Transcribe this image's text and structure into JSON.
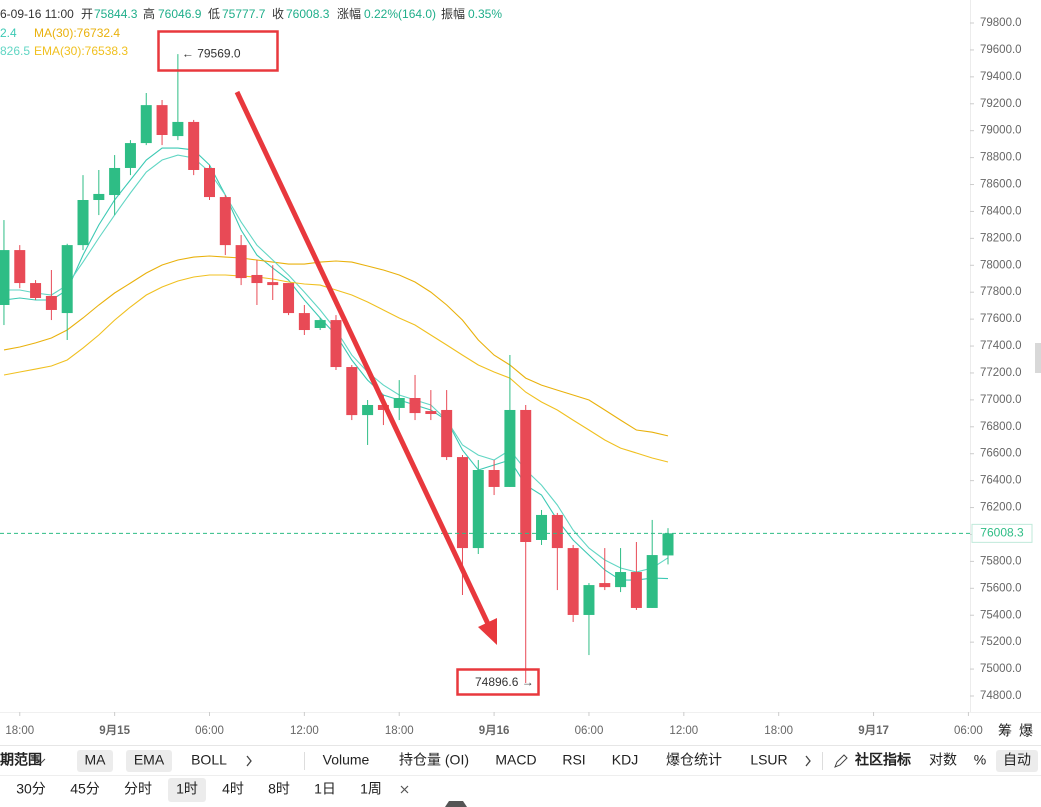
{
  "header": {
    "time": "6-09-16 11:00",
    "open_label": "开",
    "high_label": "高",
    "low_label": "低",
    "close_label": "收",
    "change_label": "涨幅",
    "change": "0.22%(164.0)",
    "amplitude_label": "振幅",
    "amplitude": "0.35%"
  },
  "chart_data": {
    "type": "candlestick",
    "up_color": "#2ebd85",
    "down_color": "#e84a56",
    "open": [
      77705,
      78113,
      77868,
      77772,
      77645,
      78150,
      78485,
      78522,
      78723,
      78908,
      79190,
      78960,
      79065,
      78723,
      78507,
      78150,
      77928,
      77875,
      77868,
      77645,
      77534,
      77593,
      77244,
      76887,
      76962,
      76940,
      77014,
      76917,
      76925,
      76575,
      75899,
      76479,
      76353,
      76925,
      75959,
      76145,
      75899,
      75402,
      75639,
      75609,
      75721,
      75454,
      75844.3
    ],
    "high": [
      78336,
      78150,
      77890,
      77965,
      78160,
      78670,
      78708,
      78819,
      78930,
      79280,
      79228,
      79569,
      79080,
      78745,
      78522,
      78225,
      78039,
      78001,
      77868,
      77705,
      77608,
      77630,
      77259,
      76999,
      77036,
      77147,
      77185,
      77073,
      77073,
      76590,
      76553,
      76553,
      77333,
      76962,
      76182,
      76160,
      75922,
      75639,
      75899,
      75899,
      75944,
      76108,
      76046.9
    ],
    "low": [
      77556,
      77830,
      77742,
      77593,
      77445,
      78113,
      78373,
      78373,
      78670,
      78893,
      78893,
      78930,
      78670,
      78485,
      78076,
      77853,
      77705,
      77742,
      77630,
      77482,
      77519,
      77222,
      76850,
      76665,
      76813,
      76850,
      76850,
      76850,
      76553,
      75550,
      75855,
      76293,
      76353,
      74896.6,
      75922,
      75587,
      75350,
      75104,
      75587,
      75572,
      75439,
      75454,
      75777.7
    ],
    "close": [
      78113,
      77868,
      77757,
      77668,
      78150,
      78485,
      78530,
      78723,
      78908,
      79190,
      78968,
      79065,
      78708,
      78507,
      78150,
      77905,
      77868,
      77853,
      77645,
      77519,
      77593,
      77244,
      76887,
      76962,
      76925,
      77014,
      76902,
      76895,
      76575,
      75899,
      76479,
      76353,
      76925,
      75944,
      76145,
      75899,
      75402,
      75624,
      75609,
      75721,
      75454,
      75847,
      76008.3
    ],
    "series": [
      {
        "legend_label": "2.4",
        "color": "#3cc9b4",
        "values": [
          77742,
          77757,
          77742,
          77742,
          77816,
          78076,
          78299,
          78485,
          78634,
          78782,
          78871,
          78871,
          78857,
          78745,
          78522,
          78262,
          78076,
          77980,
          77891,
          77742,
          77608,
          77482,
          77296,
          77147,
          77036,
          76999,
          76962,
          76925,
          76850,
          76627,
          76479,
          76516,
          76553,
          76367,
          76293,
          76108,
          75959,
          75847,
          75736,
          75661,
          75661,
          75676,
          75672.4
        ]
      },
      {
        "legend_label": "MA(30):76732.4",
        "color": "#e9b10c",
        "values": [
          77371,
          77393,
          77423,
          77460,
          77519,
          77608,
          77705,
          77794,
          77868,
          77943,
          78002,
          78039,
          78061,
          78069,
          78061,
          78054,
          78039,
          78024,
          78009,
          78009,
          78024,
          78032,
          78024,
          77995,
          77965,
          77928,
          77876,
          77801,
          77705,
          77593,
          77445,
          77333,
          77259,
          77162,
          77110,
          77073,
          77036,
          76999,
          76925,
          76850,
          76776,
          76760,
          76732.4
        ]
      },
      {
        "legend_label": "826.5",
        "color": "#62d6c4",
        "values": [
          77816,
          77816,
          77794,
          77779,
          77853,
          78024,
          78203,
          78373,
          78537,
          78693,
          78782,
          78819,
          78797,
          78693,
          78522,
          78322,
          78150,
          78039,
          77928,
          77801,
          77668,
          77519,
          77333,
          77207,
          77110,
          77036,
          76999,
          76962,
          76850,
          76665,
          76590,
          76553,
          76627,
          76479,
          76367,
          76219,
          76033,
          75899,
          75810,
          75751,
          75721,
          75751,
          75826.5
        ]
      },
      {
        "legend_label": "EMA(30):76538.3",
        "color": "#f0c020",
        "values": [
          77185,
          77207,
          77229,
          77252,
          77296,
          77385,
          77482,
          77593,
          77690,
          77779,
          77839,
          77883,
          77913,
          77928,
          77928,
          77920,
          77913,
          77898,
          77876,
          77861,
          77853,
          77816,
          77779,
          77727,
          77668,
          77608,
          77556,
          77482,
          77408,
          77333,
          77259,
          77207,
          77162,
          77058,
          76984,
          76925,
          76850,
          76776,
          76702,
          76642,
          76605,
          76568,
          76538.3
        ]
      }
    ],
    "annotations": [
      {
        "value": 79569,
        "label": "← 79569.0"
      },
      {
        "value": 74896.6,
        "label": "74896.6 →"
      }
    ],
    "xlim": [
      -0.25,
      61.1
    ],
    "xticks": [
      {
        "value": 1,
        "label": "18:00"
      },
      {
        "value": 7,
        "label": "9月15"
      },
      {
        "value": 13,
        "label": "06:00"
      },
      {
        "value": 19,
        "label": "12:00"
      },
      {
        "value": 25,
        "label": "18:00"
      },
      {
        "value": 31,
        "label": "9月16"
      },
      {
        "value": 37,
        "label": "06:00"
      },
      {
        "value": 43,
        "label": "12:00"
      },
      {
        "value": 49,
        "label": "18:00"
      },
      {
        "value": 55,
        "label": "9月17"
      },
      {
        "value": 61,
        "label": "06:00"
      }
    ],
    "ylim": [
      74681,
      79971
    ],
    "yticks": [
      {
        "value": 74800,
        "label": "74800.0"
      },
      {
        "value": 75000,
        "label": "75000.0"
      },
      {
        "value": 75200,
        "label": "75200.0"
      },
      {
        "value": 75400,
        "label": "75400.0"
      },
      {
        "value": 75600,
        "label": "75600.0"
      },
      {
        "value": 75800,
        "label": "75800.0"
      },
      {
        "value": 76000,
        "label": "76000.0"
      },
      {
        "value": 76200,
        "label": "76200.0"
      },
      {
        "value": 76400,
        "label": "76400.0"
      },
      {
        "value": 76600,
        "label": "76600.0"
      },
      {
        "value": 76800,
        "label": "76800.0"
      },
      {
        "value": 77000,
        "label": "77000.0"
      },
      {
        "value": 77200,
        "label": "77200.0"
      },
      {
        "value": 77400,
        "label": "77400.0"
      },
      {
        "value": 77600,
        "label": "77600.0"
      },
      {
        "value": 77800,
        "label": "77800.0"
      },
      {
        "value": 78000,
        "label": "78000.0"
      },
      {
        "value": 78200,
        "label": "78200.0"
      },
      {
        "value": 78400,
        "label": "78400.0"
      },
      {
        "value": 78600,
        "label": "78600.0"
      },
      {
        "value": 78800,
        "label": "78800.0"
      },
      {
        "value": 79000,
        "label": "79000.0"
      },
      {
        "value": 79200,
        "label": "79200.0"
      },
      {
        "value": 79400,
        "label": "79400.0"
      },
      {
        "value": 79600,
        "label": "79600.0"
      },
      {
        "value": 79800,
        "label": "79800.0"
      }
    ],
    "last_price_line": true,
    "grid": false
  },
  "axis_buttons": [
    "筹",
    "爆"
  ],
  "toolbar": {
    "row1": [
      "期范围",
      "MA",
      "EMA",
      "BOLL",
      "Volume",
      "持仓量 (OI)",
      "MACD",
      "RSI",
      "KDJ",
      "爆仓统计",
      "LSUR",
      "社区指标",
      "对数",
      "%",
      "自动"
    ],
    "row2": [
      "30分",
      "45分",
      "分时",
      "1时",
      "4时",
      "8时",
      "1日",
      "1周"
    ]
  }
}
